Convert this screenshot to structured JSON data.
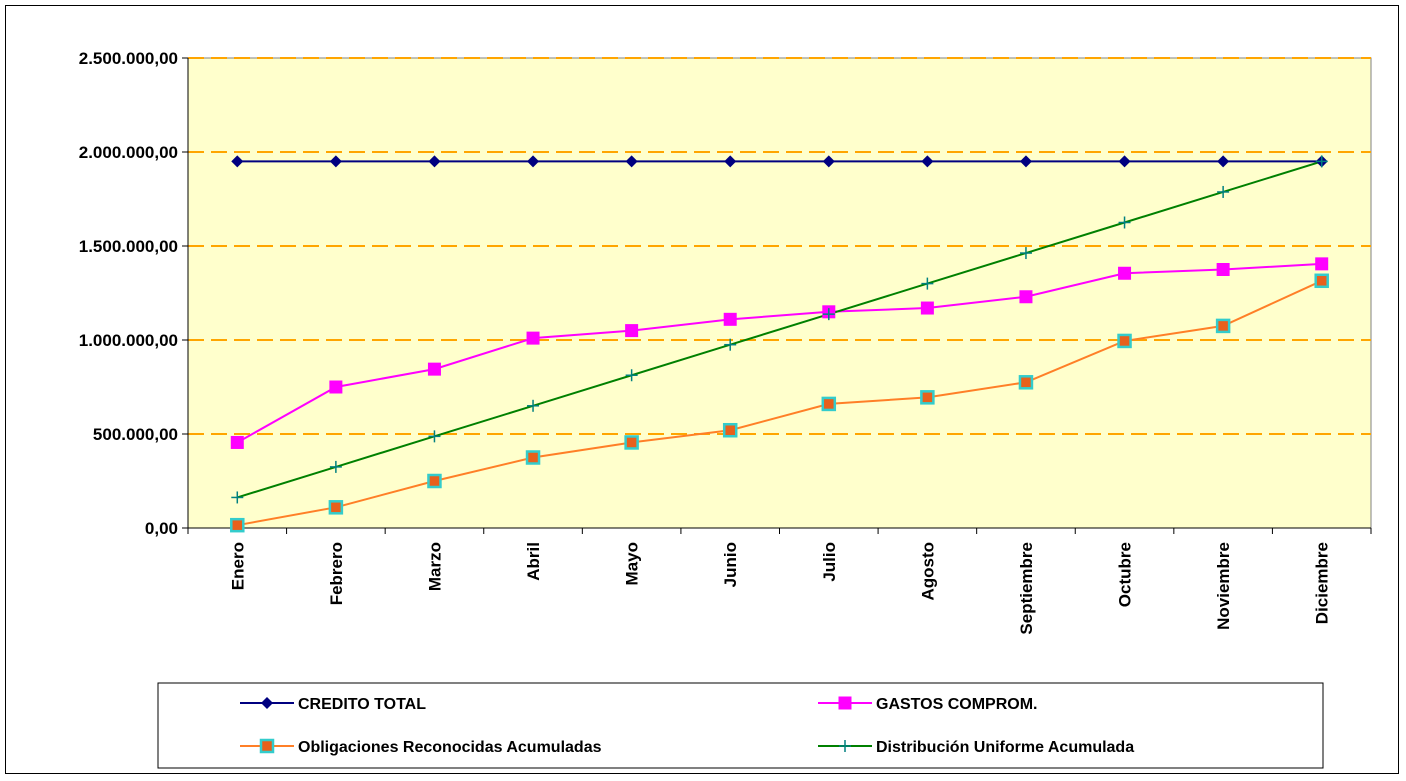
{
  "chart_data": {
    "type": "line",
    "title": "",
    "xlabel": "",
    "ylabel": "",
    "categories": [
      "Enero",
      "Febrero",
      "Marzo",
      "Abril",
      "Mayo",
      "Junio",
      "Julio",
      "Agosto",
      "Septiembre",
      "Octubre",
      "Noviembre",
      "Diciembre"
    ],
    "y_tick_labels": [
      "0,00",
      "500.000,00",
      "1.000.000,00",
      "1.500.000,00",
      "2.000.000,00",
      "2.500.000,00"
    ],
    "ylim": [
      0,
      2500000
    ],
    "grid": "horizontal dashed",
    "legend_position": "bottom",
    "colors": {
      "plot_background": "#FFFFCC",
      "gridline": "#FFA500",
      "credito_total": "#000080",
      "credito_total_marker": "#000080",
      "gastos_comprom": "#FF00FF",
      "gastos_comprom_marker": "#FF00FF",
      "obligaciones": "#FF7F27",
      "obligaciones_marker_fill": "#E8601C",
      "obligaciones_marker_border": "#33CCCC",
      "distribucion": "#008000",
      "distribucion_marker": "#008080"
    },
    "series": [
      {
        "name": "CREDITO TOTAL",
        "marker": "diamond",
        "values": [
          1950000,
          1950000,
          1950000,
          1950000,
          1950000,
          1950000,
          1950000,
          1950000,
          1950000,
          1950000,
          1950000,
          1950000
        ]
      },
      {
        "name": "GASTOS COMPROM.",
        "marker": "square",
        "values": [
          455000,
          750000,
          845000,
          1010000,
          1050000,
          1110000,
          1150000,
          1170000,
          1230000,
          1355000,
          1375000,
          1405000
        ]
      },
      {
        "name": "Obligaciones Reconocidas Acumuladas",
        "marker": "square-outlined",
        "values": [
          15000,
          110000,
          250000,
          375000,
          455000,
          520000,
          660000,
          695000,
          775000,
          995000,
          1075000,
          1315000
        ]
      },
      {
        "name": "Distribución Uniforme Acumulada",
        "marker": "plus",
        "values": [
          162500,
          325000,
          487500,
          650000,
          812500,
          975000,
          1137500,
          1300000,
          1462500,
          1625000,
          1787500,
          1950000
        ]
      }
    ]
  }
}
